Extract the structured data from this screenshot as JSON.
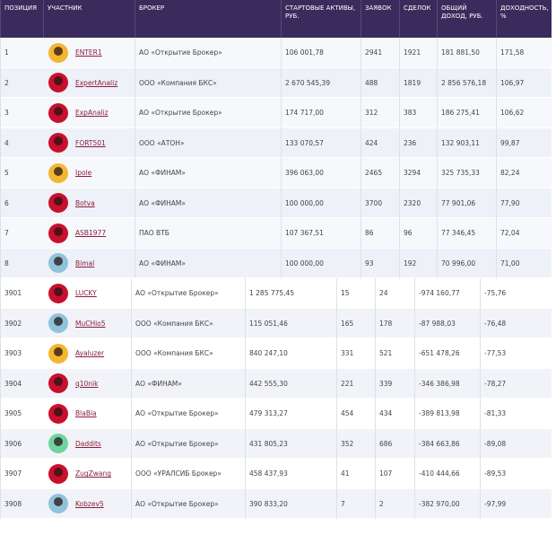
{
  "table": {
    "headers": [
      "ПОЗИЦИЯ",
      "УЧАСТНИК",
      "БРОКЕР",
      "СТАРТОВЫЕ АКТИВЫ, РУБ.",
      "ЗАЯВОК",
      "СДЕЛОК",
      "ОБЩИЙ ДОХОД, РУБ.",
      "ДОХОДНОСТЬ, %"
    ],
    "top_rows": [
      [
        "1",
        "ENTER1",
        "АО «Открытие Брокер»",
        "106 001,78",
        "2941",
        "1921",
        "181 881,50",
        "171,58"
      ],
      [
        "2",
        "ExpertAnaliz",
        "ООО «Компания БКС»",
        "2 670 545,39",
        "488",
        "1819",
        "2 856 576,18",
        "106,97"
      ],
      [
        "3",
        "ExpAnaliz",
        "АО «Открытие Брокер»",
        "174 717,00",
        "312",
        "383",
        "186 275,41",
        "106,62"
      ],
      [
        "4",
        "FORT501",
        "ООО «АТОН»",
        "133 070,57",
        "424",
        "236",
        "132 903,11",
        "99,87"
      ],
      [
        "5",
        "Ipole",
        "АО «ФИНАМ»",
        "396 063,00",
        "2465",
        "3294",
        "325 735,33",
        "82,24"
      ],
      [
        "6",
        "Botva",
        "АО «ФИНАМ»",
        "100 000,00",
        "3700",
        "2320",
        "77 901,06",
        "77,90"
      ],
      [
        "7",
        "ASB1977",
        "ПАО ВТБ",
        "107 367,51",
        "86",
        "96",
        "77 346,45",
        "72,04"
      ],
      [
        "8",
        "Bimal",
        "АО «ФИНАМ»",
        "100 000,00",
        "93",
        "192",
        "70 996,00",
        "71,00"
      ]
    ],
    "bottom_rows": [
      [
        "3901",
        "LUCKY",
        "АО «Открытие Брокер»",
        "1 285 775,45",
        "15",
        "24",
        "-974 160,77",
        "-75,76"
      ],
      [
        "3902",
        "MuCHio5",
        "ООО «Компания БКС»",
        "115 051,46",
        "165",
        "178",
        "-87 988,03",
        "-76,48"
      ],
      [
        "3903",
        "Ayaluzer",
        "ООО «Компания БКС»",
        "840 247,10",
        "331",
        "521",
        "-651 478,26",
        "-77,53"
      ],
      [
        "3904",
        "q10nik",
        "АО «ФИНАМ»",
        "442 555,30",
        "221",
        "339",
        "-346 386,98",
        "-78,27"
      ],
      [
        "3905",
        "BlaBla",
        "АО «Открытие Брокер»",
        "479 313,27",
        "454",
        "434",
        "-389 813,98",
        "-81,33"
      ],
      [
        "3906",
        "Daddits",
        "АО «Открытие Брокер»",
        "431 805,23",
        "352",
        "686",
        "-384 663,86",
        "-89,08"
      ],
      [
        "3907",
        "ZugZwang",
        "ООО «УРАЛСИБ Брокер»",
        "458 437,93",
        "41",
        "107",
        "-410 444,66",
        "-89,53"
      ],
      [
        "3908",
        "Kobzev5",
        "АО «Открытие Брокер»",
        "390 833,20",
        "7",
        "2",
        "-382 970,00",
        "-97,99"
      ]
    ]
  }
}
